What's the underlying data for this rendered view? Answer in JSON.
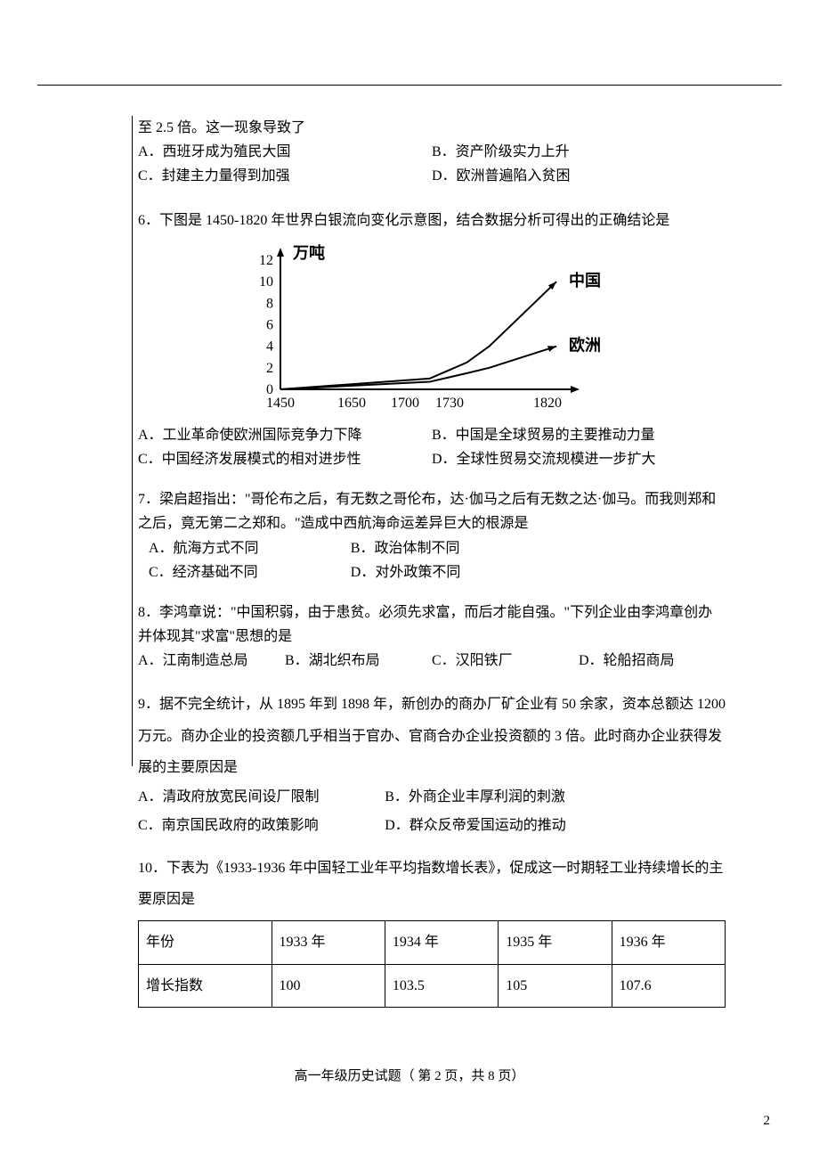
{
  "q5": {
    "stem_cont": "至 2.5 倍。这一现象导致了",
    "optA": "A．西班牙成为殖民大国",
    "optB": "B．资产阶级实力上升",
    "optC": "C．封建主力量得到加强",
    "optD": "D．欧洲普遍陷入贫困"
  },
  "q6": {
    "stem": "6．下图是 1450-1820 年世界白银流向变化示意图，结合数据分析可得出的正确结论是",
    "chart": {
      "y_label": "万吨",
      "y_ticks": [
        "0",
        "2",
        "4",
        "6",
        "8",
        "10",
        "12"
      ],
      "x_ticks": [
        "1450",
        "1650",
        "1700",
        "1730",
        "1820"
      ],
      "series": [
        {
          "label": "中国",
          "points": [
            [
              0,
              0
            ],
            [
              200,
              1
            ],
            [
              250,
              2.5
            ],
            [
              280,
              4
            ],
            [
              370,
              10
            ]
          ]
        },
        {
          "label": "欧洲",
          "points": [
            [
              0,
              0
            ],
            [
              200,
              0.7
            ],
            [
              250,
              1.5
            ],
            [
              280,
              2
            ],
            [
              370,
              4
            ]
          ]
        }
      ],
      "axis_color": "#000000",
      "line_color": "#000000",
      "bg": "#ffffff",
      "font_size": 16
    },
    "optA": "A．工业革命使欧洲国际竞争力下降",
    "optB": "B．中国是全球贸易的主要推动力量",
    "optC": "C．中国经济发展模式的相对进步性",
    "optD": "D．全球性贸易交流规模进一步扩大"
  },
  "q7": {
    "stem": "7．梁启超指出：\"哥伦布之后，有无数之哥伦布，达·伽马之后有无数之达·伽马。而我则郑和之后，竟无第二之郑和。\"造成中西航海命运差异巨大的根源是",
    "optA": "A．航海方式不同",
    "optB": "B．政治体制不同",
    "optC": "C．经济基础不同",
    "optD": "D．对外政策不同"
  },
  "q8": {
    "stem": "8．李鸿章说：\"中国积弱，由于患贫。必须先求富，而后才能自强。\"下列企业由李鸿章创办并体现其\"求富\"思想的是",
    "optA": "A．江南制造总局",
    "optB": "B．湖北织布局",
    "optC": "C．汉阳铁厂",
    "optD": "D．轮船招商局"
  },
  "q9": {
    "stem": "9．据不完全统计，从 1895 年到 1898 年，新创办的商办厂矿企业有 50 余家，资本总额达 1200 万元。商办企业的投资额几乎相当于官办、官商合办企业投资额的 3 倍。此时商办企业获得发展的主要原因是",
    "optA": "A．清政府放宽民间设厂限制",
    "optB": "B．外商企业丰厚利润的刺激",
    "optC": "C．南京国民政府的政策影响",
    "optD": "D．群众反帝爱国运动的推动"
  },
  "q10": {
    "stem": "10．下表为《1933-1936 年中国轻工业年平均指数增长表》，促成这一时期轻工业持续增长的主要原因是",
    "table": {
      "headers": [
        "年份",
        "1933 年",
        "1934 年",
        "1935 年",
        "1936 年"
      ],
      "row_label": "增长指数",
      "values": [
        "100",
        "103.5",
        "105",
        "107.6"
      ]
    }
  },
  "footer": "高一年级历史试题（ 第 2 页，共 8 页）",
  "page_number": "2"
}
